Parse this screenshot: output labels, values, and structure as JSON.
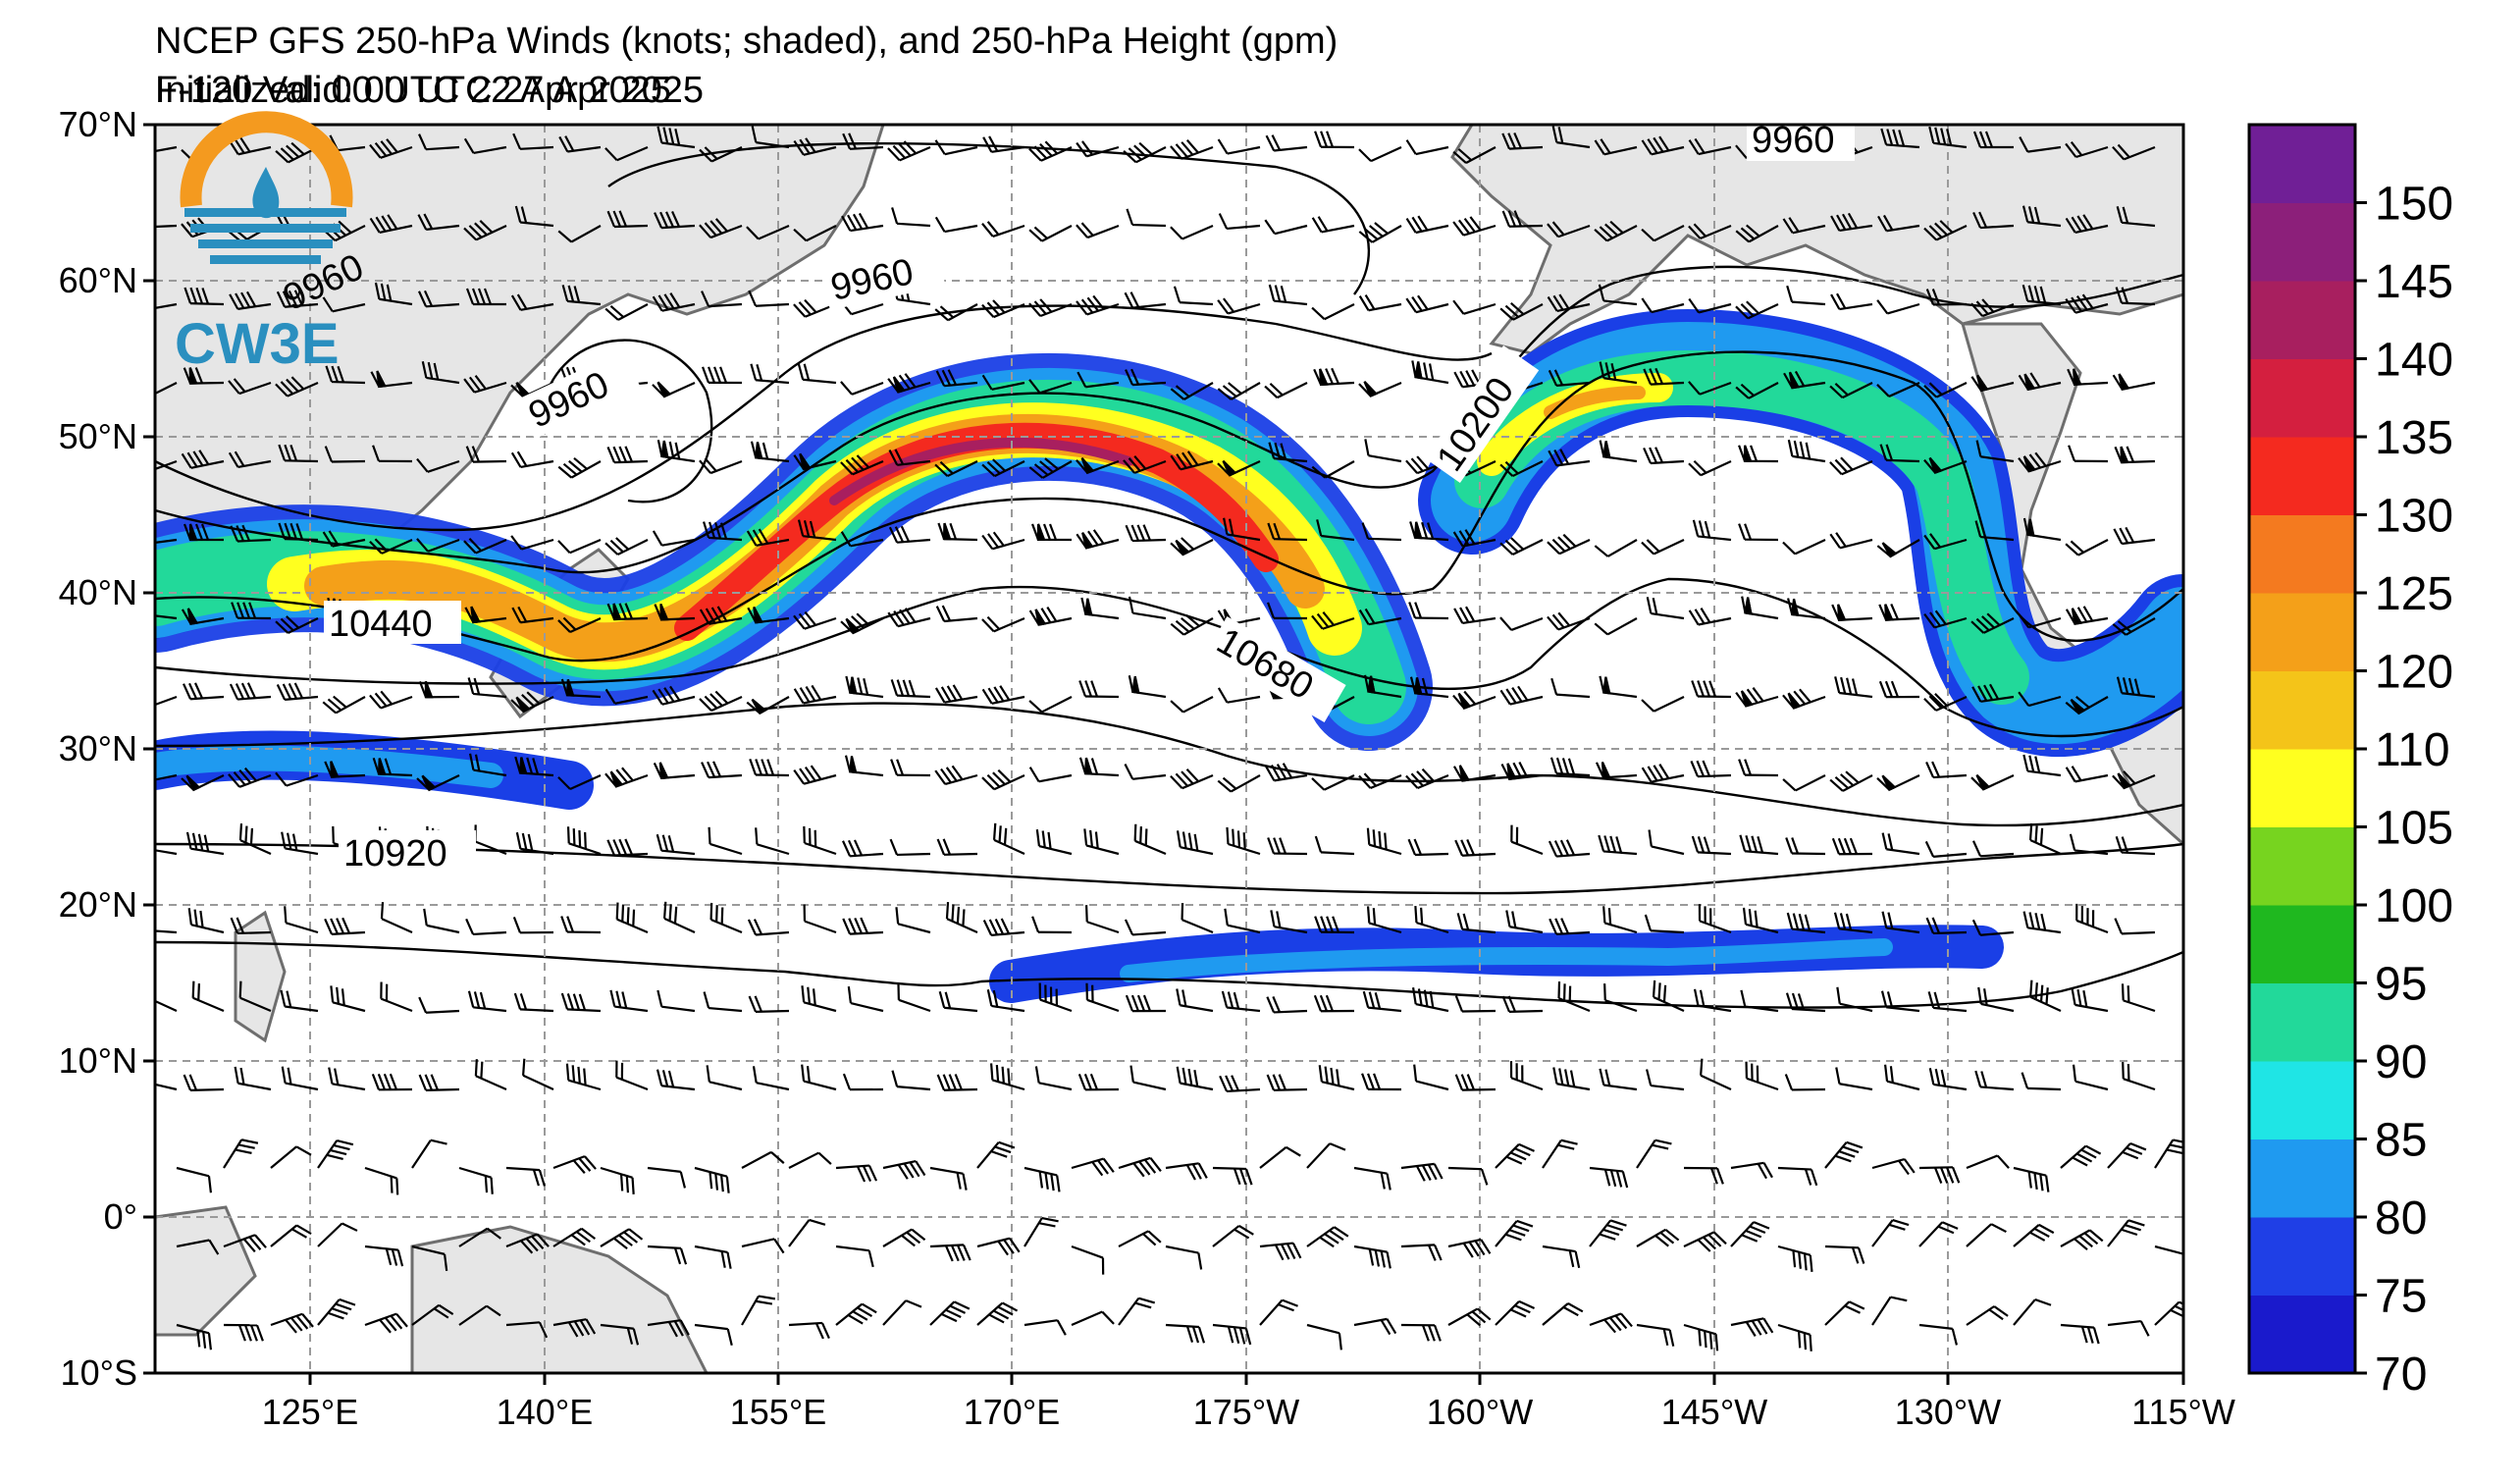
{
  "header": {
    "title": "NCEP GFS 250-hPa Winds (knots; shaded), and 250-hPa Height (gpm)",
    "initialized": "Initialized: 00 UTC 22 Apr 2025",
    "valid": "F-120  Valid: 00 UTC 27 Apr 2025"
  },
  "logo": {
    "text": "CW3E"
  },
  "map": {
    "lat_ticks": [
      "70°N",
      "60°N",
      "50°N",
      "40°N",
      "30°N",
      "20°N",
      "10°N",
      "0°",
      "10°S"
    ],
    "lon_ticks": [
      "125°E",
      "140°E",
      "155°E",
      "170°E",
      "175°W",
      "160°W",
      "145°W",
      "130°W",
      "115°W"
    ],
    "gridlines": true,
    "land_color": "#e6e6e6",
    "coast_color": "#666666"
  },
  "contours": {
    "labels": [
      "9960",
      "9960",
      "9960",
      "9960",
      "10200",
      "10440",
      "10680",
      "10920"
    ]
  },
  "colorbar": {
    "ticks": [
      "150",
      "145",
      "140",
      "135",
      "130",
      "125",
      "120",
      "110",
      "105",
      "100",
      "95",
      "90",
      "85",
      "80",
      "75",
      "70"
    ],
    "colors": [
      "#1a1acc",
      "#1f3fe6",
      "#1f9af0",
      "#1fe5e5",
      "#22d99a",
      "#1fb81f",
      "#77d41f",
      "#ffff1f",
      "#f4c419",
      "#f4a019",
      "#f47a1f",
      "#f42a1f",
      "#d41f3f",
      "#a81f5f",
      "#8c1f7a",
      "#701f96"
    ]
  }
}
